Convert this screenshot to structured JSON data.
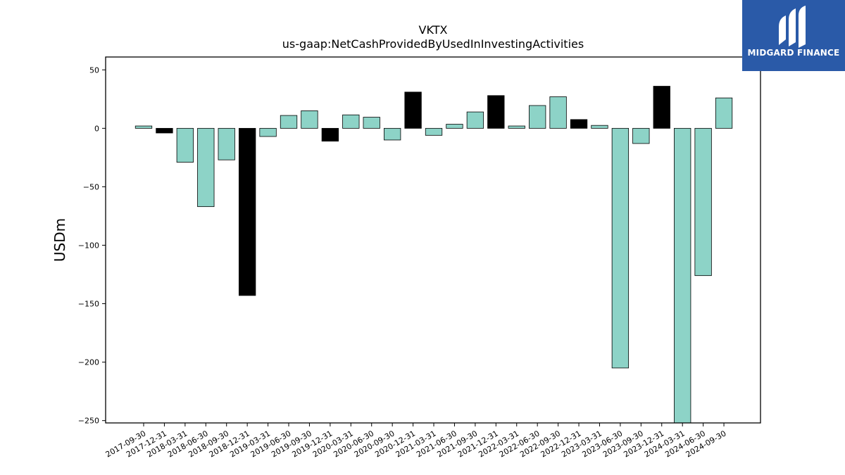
{
  "chart_data": {
    "type": "bar",
    "title": "VKTX",
    "subtitle": "us-gaap:NetCashProvidedByUsedInInvestingActivities",
    "ylabel": "USDm",
    "xlabel": "",
    "ylim": [
      -252,
      61
    ],
    "yticks": [
      50,
      0,
      -50,
      -100,
      -150,
      -200,
      -250
    ],
    "grid": false,
    "colors": {
      "default": "#8dd3c7",
      "highlight": "#000000"
    },
    "categories": [
      "2017-09-30",
      "2017-12-31",
      "2018-03-31",
      "2018-06-30",
      "2018-09-30",
      "2018-12-31",
      "2019-03-31",
      "2019-06-30",
      "2019-09-30",
      "2019-12-31",
      "2020-03-31",
      "2020-06-30",
      "2020-09-30",
      "2020-12-31",
      "2021-03-31",
      "2021-06-30",
      "2021-09-30",
      "2021-12-31",
      "2022-03-31",
      "2022-06-30",
      "2022-09-30",
      "2022-12-31",
      "2023-03-31",
      "2023-06-30",
      "2023-09-30",
      "2023-12-31",
      "2024-03-31",
      "2024-06-30",
      "2024-09-30"
    ],
    "values": [
      2,
      -4,
      -29,
      -67,
      -27,
      -143,
      -7,
      11,
      15,
      -11,
      11.5,
      9.5,
      -10,
      31,
      -6,
      3.5,
      14,
      28,
      2,
      19.5,
      27,
      7.5,
      2.5,
      -205,
      -13,
      36,
      -255,
      -126,
      26
    ],
    "highlight": [
      false,
      true,
      false,
      false,
      false,
      true,
      false,
      false,
      false,
      true,
      false,
      false,
      false,
      true,
      false,
      false,
      false,
      true,
      false,
      false,
      false,
      true,
      false,
      false,
      false,
      true,
      false,
      false,
      false
    ]
  },
  "logo": {
    "text": "MIDGARD FINANCE",
    "color": "#2a5aa8"
  }
}
